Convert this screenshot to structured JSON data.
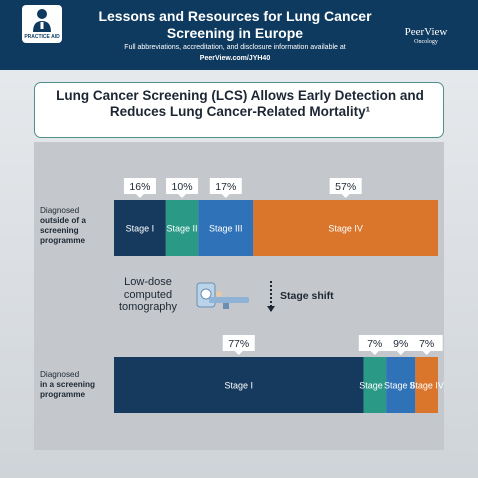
{
  "header": {
    "badge_label": "PRACTICE AID",
    "title": "Lessons and Resources for Lung Cancer Screening in Europe",
    "subtitle": "Full abbreviations, accreditation, and disclosure information available at",
    "url": "PeerView.com/JYH40",
    "logo_main": "PeerView",
    "logo_sub": "Oncology"
  },
  "title_box": {
    "text": "Lung Cancer Screening (LCS) Allows Early Detection and Reduces Lung Cancer-Related Mortality¹"
  },
  "middle": {
    "ldct_label": "Low-dose computed tomography",
    "shift_label": "Stage shift",
    "ldct_icon": "ct-scanner-icon",
    "shift_icon": "dotted-down-arrow-icon"
  },
  "colors": {
    "stage_i": "#163a5e",
    "stage_ii": "#2a9a86",
    "stage_iii": "#2f72b8",
    "stage_iv": "#d9762b",
    "header": "#0f3a5f"
  },
  "chart_data": {
    "type": "bar",
    "orientation": "horizontal-stacked-100",
    "categories": [
      "Stage I",
      "Stage II",
      "Stage III",
      "Stage IV"
    ],
    "series": [
      {
        "name_line1": "Diagnosed",
        "name_line2": "outside of a",
        "name_line3": "screening",
        "name_line4": "programme",
        "values": [
          16,
          10,
          17,
          57
        ],
        "labels": [
          "16%",
          "10%",
          "17%",
          "57%"
        ]
      },
      {
        "name_line1": "Diagnosed",
        "name_line2": "in a screening",
        "name_line3": "programme",
        "values": [
          77,
          7,
          9,
          7
        ],
        "labels": [
          "77%",
          "7%",
          "9%",
          "7%"
        ]
      }
    ],
    "segment_labels": [
      "Stage I",
      "Stage II",
      "Stage III",
      "Stage IV"
    ]
  }
}
